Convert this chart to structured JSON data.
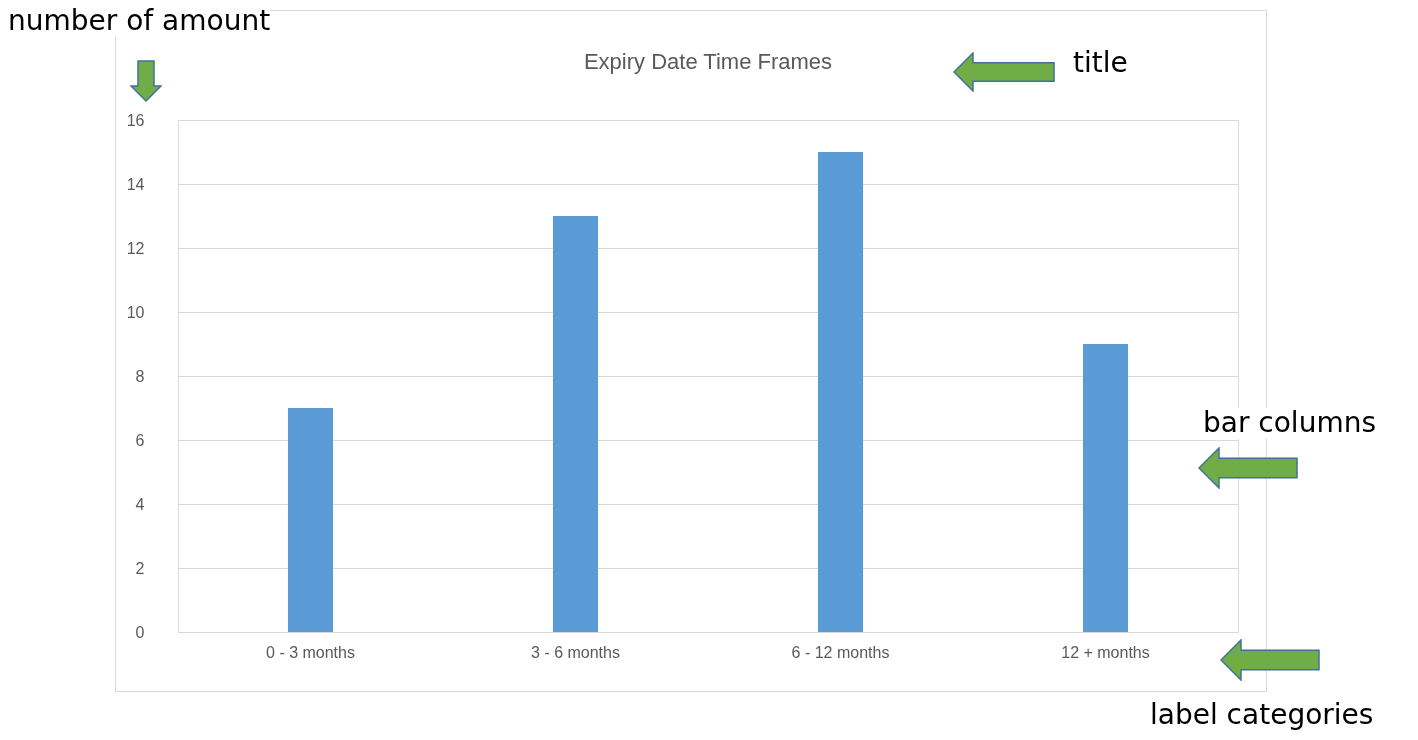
{
  "chart_data": {
    "type": "bar",
    "title": "Expiry Date Time Frames",
    "categories": [
      "0 - 3 months",
      "3 - 6 months",
      "6 - 12 months",
      "12 + months"
    ],
    "values": [
      7,
      13,
      15,
      9
    ],
    "color": "#5b9bd5",
    "ylim": [
      0,
      16
    ],
    "yticks": [
      0,
      2,
      4,
      6,
      8,
      10,
      12,
      14,
      16
    ],
    "grid": "y",
    "annotations": [
      "number of amount",
      "title",
      "bar columns",
      "label categories"
    ]
  }
}
